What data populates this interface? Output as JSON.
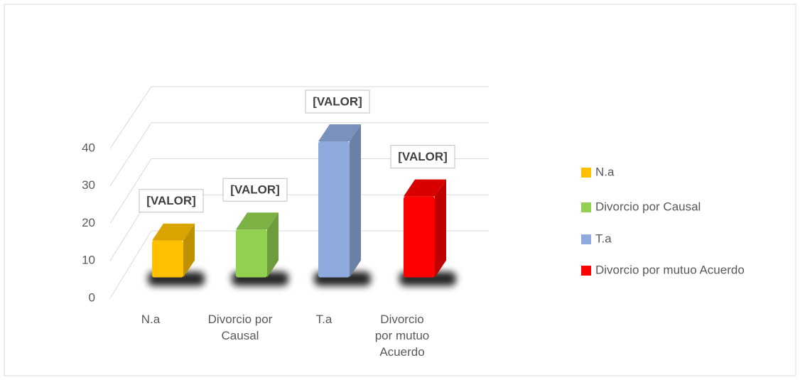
{
  "chart_data": {
    "type": "bar3d",
    "categories": [
      "N.a",
      "Divorcio por Causal",
      "T.a",
      "Divorcio por mutuo Acuerdo"
    ],
    "series": [
      {
        "name": "N.a",
        "color": "#ffc000",
        "values": [
          10,
          null,
          null,
          null
        ],
        "value_labels": [
          "[VALOR]",
          null,
          null,
          null
        ]
      },
      {
        "name": "Divorcio por Causal",
        "color": "#92d050",
        "values": [
          null,
          13,
          null,
          null
        ],
        "value_labels": [
          null,
          "[VALOR]",
          null,
          null
        ]
      },
      {
        "name": "T.a",
        "color": "#8faadc",
        "values": [
          null,
          null,
          37,
          null
        ],
        "value_labels": [
          null,
          null,
          "[VALOR]",
          null
        ]
      },
      {
        "name": "Divorcio por mutuo Acuerdo",
        "color": "#ff0000",
        "values": [
          null,
          null,
          null,
          22
        ],
        "value_labels": [
          null,
          null,
          null,
          "[VALOR]"
        ]
      }
    ],
    "ylim": [
      0,
      40
    ],
    "yticks": [
      0,
      10,
      20,
      30,
      40
    ],
    "grid": true,
    "legend": "right"
  }
}
